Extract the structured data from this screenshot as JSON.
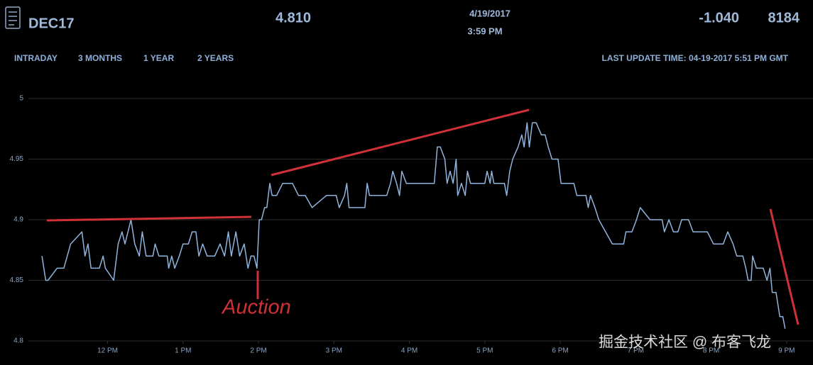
{
  "header": {
    "symbol": "DEC17",
    "price": "4.810",
    "date": "4/19/2017",
    "time": "3:59 PM",
    "change": "-1.040",
    "volume": "8184"
  },
  "tabs": [
    "INTRADAY",
    "3 MONTHS",
    "1 YEAR",
    "2 YEARS"
  ],
  "last_update": "LAST UPDATE TIME: 04-19-2017 5:51 PM GMT",
  "watermark": "掘金技术社区 @ 布客飞龙",
  "chart_data": {
    "type": "line",
    "annotation": "Auction",
    "x": [
      11.13,
      11.18,
      11.21,
      11.33,
      11.42,
      11.51,
      11.66,
      11.7,
      11.74,
      11.78,
      11.89,
      11.94,
      11.97,
      12.08,
      12.14,
      12.19,
      12.23,
      12.31,
      12.36,
      12.42,
      12.46,
      12.51,
      12.6,
      12.63,
      12.68,
      12.79,
      12.81,
      12.85,
      12.89,
      12.95,
      13.0,
      13.07,
      13.12,
      13.17,
      13.21,
      13.26,
      13.32,
      13.42,
      13.49,
      13.55,
      13.6,
      13.64,
      13.7,
      13.75,
      13.81,
      13.86,
      13.9,
      13.94,
      13.98,
      14.01,
      14.04,
      14.08,
      14.11,
      14.15,
      14.18,
      14.24,
      14.32,
      14.45,
      14.53,
      14.62,
      14.71,
      14.9,
      15.03,
      15.07,
      15.14,
      15.17,
      15.2,
      15.33,
      15.41,
      15.44,
      15.47,
      15.61,
      15.7,
      15.75,
      15.78,
      15.83,
      15.87,
      15.9,
      15.96,
      16.03,
      16.17,
      16.33,
      16.37,
      16.41,
      16.47,
      16.5,
      16.54,
      16.58,
      16.62,
      16.64,
      16.69,
      16.74,
      16.77,
      16.81,
      16.9,
      17.0,
      17.03,
      17.07,
      17.09,
      17.12,
      17.26,
      17.29,
      17.33,
      17.37,
      17.44,
      17.49,
      17.52,
      17.56,
      17.59,
      17.63,
      17.68,
      17.75,
      17.8,
      17.84,
      17.89,
      17.97,
      18.01,
      18.18,
      18.22,
      18.34,
      18.37,
      18.4,
      18.46,
      18.51,
      18.69,
      18.84,
      18.87,
      18.95,
      19.01,
      19.06,
      19.19,
      19.35,
      19.38,
      19.44,
      19.5,
      19.56,
      19.61,
      19.7,
      19.76,
      19.95,
      20.03,
      20.16,
      20.22,
      20.29,
      20.34,
      20.42,
      20.46,
      20.49,
      20.53,
      20.55,
      20.6,
      20.69,
      20.74,
      20.78,
      20.81,
      20.86,
      20.91,
      20.95,
      20.98
    ],
    "series": [
      {
        "color": "#8fb4de",
        "values": [
          4.87,
          4.85,
          4.85,
          4.86,
          4.86,
          4.88,
          4.89,
          4.87,
          4.88,
          4.86,
          4.86,
          4.87,
          4.86,
          4.85,
          4.88,
          4.89,
          4.88,
          4.9,
          4.88,
          4.87,
          4.89,
          4.87,
          4.87,
          4.88,
          4.87,
          4.87,
          4.86,
          4.87,
          4.86,
          4.87,
          4.88,
          4.88,
          4.89,
          4.89,
          4.87,
          4.88,
          4.87,
          4.87,
          4.88,
          4.87,
          4.89,
          4.87,
          4.89,
          4.87,
          4.88,
          4.86,
          4.87,
          4.87,
          4.86,
          4.9,
          4.9,
          4.91,
          4.91,
          4.93,
          4.92,
          4.92,
          4.93,
          4.93,
          4.92,
          4.92,
          4.91,
          4.92,
          4.92,
          4.91,
          4.92,
          4.93,
          4.91,
          4.91,
          4.91,
          4.93,
          4.92,
          4.92,
          4.92,
          4.93,
          4.94,
          4.93,
          4.92,
          4.94,
          4.93,
          4.93,
          4.93,
          4.93,
          4.96,
          4.96,
          4.95,
          4.93,
          4.94,
          4.93,
          4.95,
          4.92,
          4.93,
          4.92,
          4.94,
          4.93,
          4.93,
          4.93,
          4.94,
          4.93,
          4.94,
          4.93,
          4.93,
          4.92,
          4.94,
          4.95,
          4.96,
          4.97,
          4.96,
          4.98,
          4.96,
          4.98,
          4.98,
          4.97,
          4.97,
          4.96,
          4.95,
          4.95,
          4.93,
          4.93,
          4.92,
          4.92,
          4.91,
          4.92,
          4.91,
          4.9,
          4.88,
          4.88,
          4.89,
          4.89,
          4.9,
          4.91,
          4.9,
          4.9,
          4.89,
          4.9,
          4.89,
          4.89,
          4.9,
          4.9,
          4.89,
          4.89,
          4.88,
          4.88,
          4.89,
          4.88,
          4.87,
          4.87,
          4.86,
          4.85,
          4.85,
          4.87,
          4.86,
          4.86,
          4.85,
          4.86,
          4.84,
          4.84,
          4.82,
          4.82,
          4.81
        ]
      }
    ],
    "xlim": [
      10.95,
      21.35
    ],
    "ylim": [
      4.8,
      5
    ],
    "xticks": [
      {
        "value": 12,
        "label": "12 PM"
      },
      {
        "value": 13,
        "label": "1 PM"
      },
      {
        "value": 14,
        "label": "2 PM"
      },
      {
        "value": 15,
        "label": "3 PM"
      },
      {
        "value": 16,
        "label": "4 PM"
      },
      {
        "value": 17,
        "label": "5 PM"
      },
      {
        "value": 18,
        "label": "6 PM"
      },
      {
        "value": 19,
        "label": "7 PM"
      },
      {
        "value": 20,
        "label": "8 PM"
      },
      {
        "value": 21,
        "label": "9 PM"
      }
    ],
    "yticks": [
      5,
      4.95,
      4.9,
      4.85,
      4.8
    ],
    "grid": true
  }
}
